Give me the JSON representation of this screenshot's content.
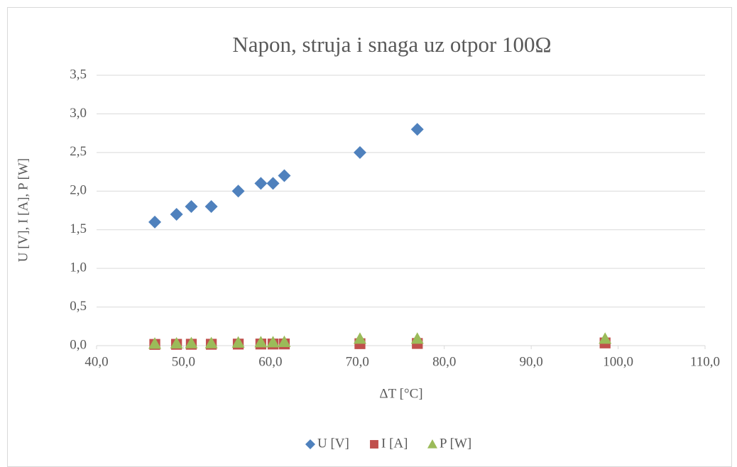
{
  "chart_data": {
    "type": "scatter",
    "title": "Napon, struja i snaga uz otpor 100Ω",
    "x_label": "ΔT [°C]",
    "y_label": "U [V], I [A], P [W]",
    "xlim": [
      40,
      110
    ],
    "xticks": [
      {
        "value": 40,
        "label": "40,0"
      },
      {
        "value": 50,
        "label": "50,0"
      },
      {
        "value": 60,
        "label": "60,0"
      },
      {
        "value": 70,
        "label": "70,0"
      },
      {
        "value": 80,
        "label": "80,0"
      },
      {
        "value": 90,
        "label": "90,0"
      },
      {
        "value": 100,
        "label": "100,0"
      },
      {
        "value": 110,
        "label": "110,0"
      }
    ],
    "ylim": [
      0,
      3.5
    ],
    "yticks": [
      {
        "value": 0,
        "label": "0,0"
      },
      {
        "value": 0.5,
        "label": "0,5"
      },
      {
        "value": 1,
        "label": "1,0"
      },
      {
        "value": 1.5,
        "label": "1,5"
      },
      {
        "value": 2,
        "label": "2,0"
      },
      {
        "value": 2.5,
        "label": "2,5"
      },
      {
        "value": 3,
        "label": "3,0"
      },
      {
        "value": 3.5,
        "label": "3,5"
      }
    ],
    "grid": true,
    "legend": "bottom",
    "series": [
      {
        "name": "U [V]",
        "color": "#4f81bd",
        "marker": "diamond",
        "x": [
          46.7,
          49.2,
          50.9,
          53.2,
          56.3,
          58.9,
          60.3,
          61.6,
          70.3,
          76.9
        ],
        "values": [
          1.6,
          1.7,
          1.8,
          1.8,
          2.0,
          2.1,
          2.1,
          2.2,
          2.5,
          2.8
        ]
      },
      {
        "name": "I [A]",
        "color": "#c0504d",
        "marker": "square",
        "x": [
          46.7,
          49.2,
          50.9,
          53.2,
          56.3,
          58.9,
          60.3,
          61.6,
          70.3,
          76.9,
          98.5
        ],
        "values": [
          0.016,
          0.017,
          0.018,
          0.018,
          0.02,
          0.021,
          0.021,
          0.022,
          0.025,
          0.028,
          0.035
        ]
      },
      {
        "name": "P [W]",
        "color": "#9bbb59",
        "marker": "triangle",
        "x": [
          46.7,
          49.2,
          50.9,
          53.2,
          56.3,
          58.9,
          60.3,
          61.6,
          70.3,
          76.9,
          98.5
        ],
        "values": [
          0.026,
          0.029,
          0.032,
          0.032,
          0.04,
          0.044,
          0.044,
          0.048,
          0.09,
          0.09,
          0.09
        ]
      }
    ]
  }
}
